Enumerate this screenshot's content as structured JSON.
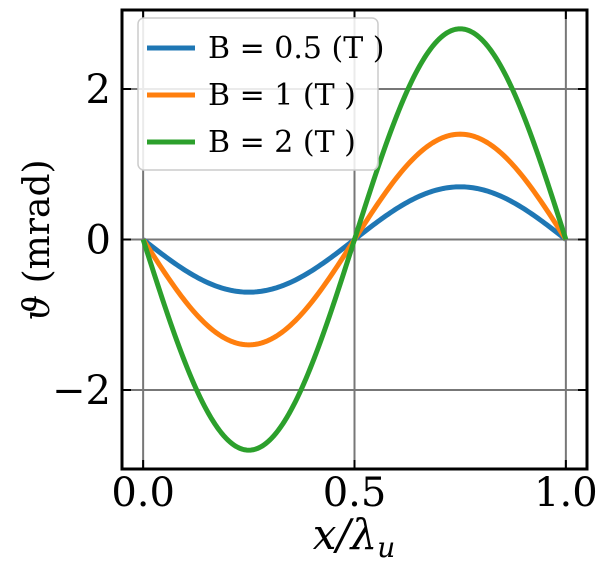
{
  "chart_data": {
    "type": "line",
    "title": "",
    "xlabel": "x/λ_u",
    "xlabel_parts": {
      "main": "x/λ",
      "sub": "u"
    },
    "ylabel": "ϑ (mrad)",
    "ylabel_parts": {
      "symbol": "ϑ",
      "unit": "(mrad)"
    },
    "xlim": [
      -0.05,
      1.05
    ],
    "ylim": [
      -3.05,
      3.05
    ],
    "xticks": [
      0.0,
      0.5,
      1.0
    ],
    "xtick_labels": [
      "0.0",
      "0.5",
      "1.0"
    ],
    "yticks": [
      -2,
      0,
      2
    ],
    "ytick_labels": [
      "−2",
      "0",
      "2"
    ],
    "grid": true,
    "legend_position": "top-left",
    "function": "theta = -amplitude * sin(2*pi*x)",
    "series": [
      {
        "name": "B = 0.5 (T  )",
        "amplitude": 0.7,
        "color": "#1f77b4"
      },
      {
        "name": "B = 1 (T  )",
        "amplitude": 1.4,
        "color": "#ff7f0e"
      },
      {
        "name": "B = 2 (T  )",
        "amplitude": 2.8,
        "color": "#2ca02c"
      }
    ]
  }
}
